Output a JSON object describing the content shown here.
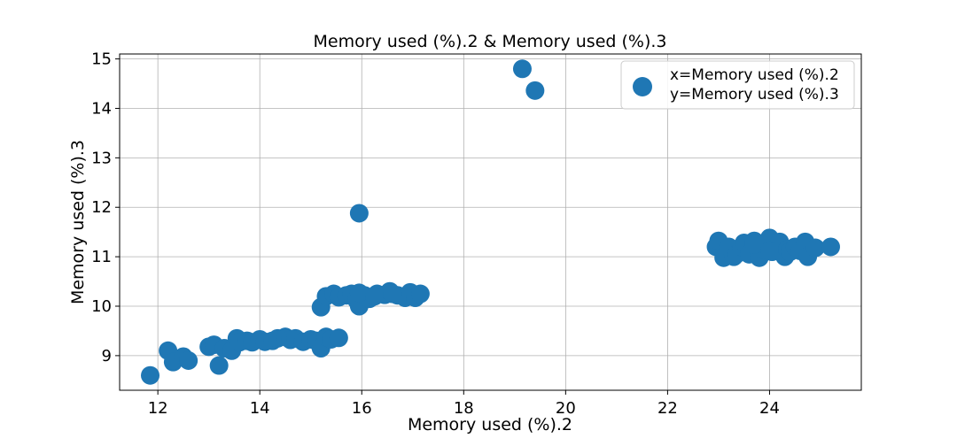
{
  "chart_data": {
    "type": "scatter",
    "title": "Memory used  (%).2 & Memory used  (%).3",
    "xlabel": "Memory used  (%).2",
    "ylabel": "Memory used  (%).3",
    "xlim": [
      11.25,
      25.8
    ],
    "ylim": [
      8.3,
      15.1
    ],
    "xticks": [
      12,
      14,
      16,
      18,
      20,
      22,
      24
    ],
    "yticks": [
      9,
      10,
      11,
      12,
      13,
      14,
      15
    ],
    "grid": true,
    "legend_position": "top-right",
    "marker_color": "#1f77b4",
    "series": [
      {
        "name": "x=Memory used  (%).2\ny=Memory used  (%).3",
        "x": [
          11.85,
          12.2,
          12.3,
          12.5,
          12.6,
          13.0,
          13.1,
          13.2,
          13.3,
          13.45,
          13.55,
          13.6,
          13.75,
          13.85,
          14.0,
          14.1,
          14.25,
          14.35,
          14.5,
          14.6,
          14.7,
          14.85,
          15.0,
          15.1,
          15.2,
          15.3,
          15.4,
          15.55,
          15.2,
          15.3,
          15.45,
          15.55,
          15.7,
          15.8,
          15.9,
          15.95,
          16.05,
          16.15,
          16.3,
          16.45,
          16.55,
          16.7,
          16.85,
          16.95,
          17.05,
          17.15,
          15.95,
          16.25,
          16.6,
          15.95,
          19.15,
          19.4,
          22.95,
          23.0,
          23.1,
          23.2,
          23.3,
          23.35,
          23.45,
          23.5,
          23.6,
          23.7,
          23.8,
          23.85,
          23.9,
          24.0,
          24.05,
          24.1,
          24.2,
          24.3,
          24.35,
          24.4,
          24.5,
          24.6,
          24.7,
          24.75,
          24.9,
          25.2,
          23.7,
          24.0
        ],
        "y": [
          8.6,
          9.1,
          8.87,
          8.98,
          8.9,
          9.18,
          9.22,
          8.8,
          9.15,
          9.1,
          9.35,
          9.27,
          9.3,
          9.27,
          9.33,
          9.28,
          9.3,
          9.35,
          9.38,
          9.32,
          9.35,
          9.28,
          9.33,
          9.3,
          9.15,
          9.38,
          9.33,
          9.36,
          9.98,
          10.2,
          10.25,
          10.18,
          10.22,
          10.25,
          10.12,
          10.0,
          10.22,
          10.15,
          10.25,
          10.23,
          10.3,
          10.22,
          10.17,
          10.28,
          10.17,
          10.25,
          10.27,
          10.2,
          10.25,
          11.88,
          14.8,
          14.36,
          11.2,
          11.32,
          10.98,
          11.2,
          11.0,
          11.05,
          11.2,
          11.28,
          11.05,
          11.32,
          10.98,
          11.15,
          11.25,
          11.38,
          11.1,
          11.2,
          11.3,
          11.0,
          11.15,
          11.1,
          11.2,
          11.12,
          11.3,
          11.0,
          11.18,
          11.2,
          11.25,
          11.12
        ]
      }
    ]
  }
}
